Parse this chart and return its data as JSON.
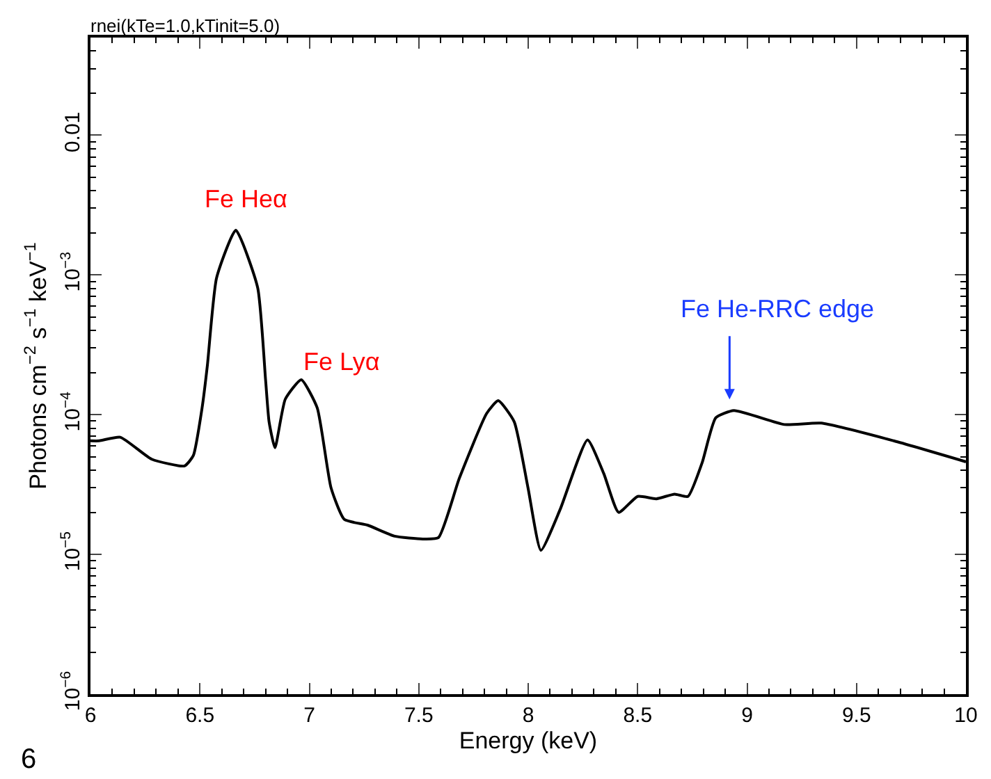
{
  "chart_data": {
    "type": "line",
    "title": "rnei(kTe=1.0,kTinit=5.0)",
    "xlabel": "Energy (keV)",
    "ylabel": "Photons cm$^{−2}$ s$^{−1}$ keV$^{−1}$",
    "x": [
      6.0,
      6.04,
      6.136,
      6.28,
      6.43,
      6.47,
      6.51,
      6.534,
      6.576,
      6.664,
      6.764,
      6.8,
      6.816,
      6.843,
      6.89,
      6.963,
      7.036,
      7.099,
      7.16,
      7.266,
      7.39,
      7.518,
      7.59,
      7.685,
      7.81,
      7.863,
      7.936,
      7.999,
      8.058,
      8.146,
      8.271,
      8.345,
      8.413,
      8.5,
      8.585,
      8.669,
      8.73,
      8.794,
      8.857,
      8.94,
      9.171,
      9.339,
      9.67,
      10.0
    ],
    "series": [
      {
        "color": "#000000",
        "values": [
          6.5e-05,
          6.5e-05,
          6.9e-05,
          4.8e-05,
          4.3e-05,
          5.1e-05,
          0.000112,
          0.000224,
          0.00095,
          0.00209,
          0.00081,
          0.000178,
          8.9e-05,
          5.8e-05,
          0.000129,
          0.000178,
          0.000112,
          3e-05,
          1.78e-05,
          1.62e-05,
          1.35e-05,
          1.29e-05,
          1.32e-05,
          3.5e-05,
          0.000102,
          0.000126,
          8.9e-05,
          3e-05,
          1.07e-05,
          2.1e-05,
          6.6e-05,
          3.8e-05,
          2e-05,
          2.6e-05,
          2.5e-05,
          2.7e-05,
          2.6e-05,
          4.5e-05,
          9.5e-05,
          0.000107,
          8.5e-05,
          8.7e-05,
          6.5e-05,
          4.6e-05
        ]
      }
    ],
    "xlim": [
      6,
      10
    ],
    "xticks": [
      6,
      6.5,
      7,
      7.5,
      8,
      8.5,
      9,
      9.5,
      10
    ],
    "ylim": [
      1e-06,
      0.05
    ],
    "yticks": [
      {
        "value": 1e-06,
        "label": "10$^{−6}$"
      },
      {
        "value": 1e-05,
        "label": "10$^{−5}$"
      },
      {
        "value": 0.0001,
        "label": "10$^{−4}$"
      },
      {
        "value": 0.001,
        "label": "10$^{−3}$"
      },
      {
        "value": 0.01,
        "label": "0.01"
      }
    ],
    "log": "y",
    "marker": "none",
    "line_style": "solid",
    "annotations": [
      "Fe Heα",
      "Fe Lyα",
      "Fe He-RRC edge",
      "6"
    ]
  }
}
